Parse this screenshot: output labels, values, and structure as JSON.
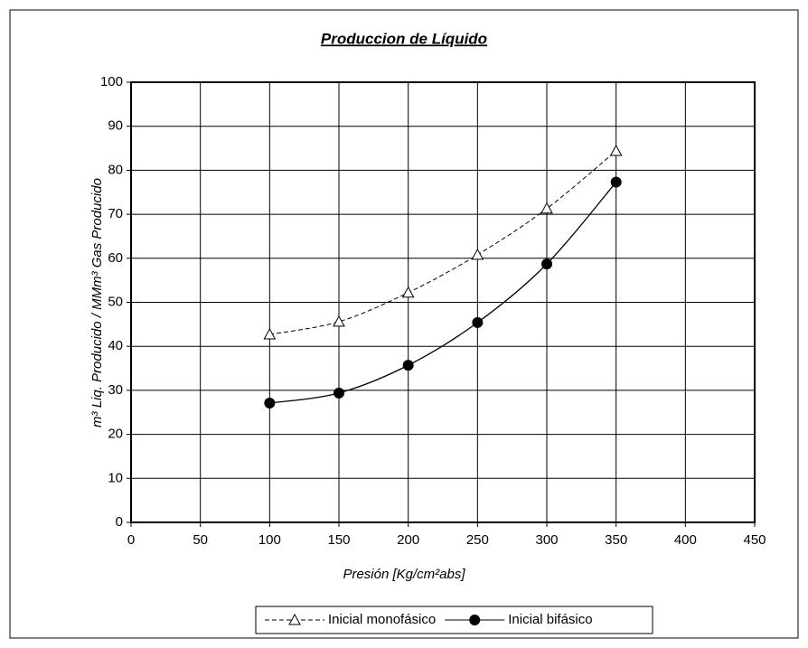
{
  "chart_data": {
    "type": "line",
    "title": "Produccion de Líquido",
    "x_label": "Presión [Kg/cm²abs]",
    "y_label": "m³ Liq. Producido / MMm³ Gas Producido",
    "x": [
      100,
      150,
      200,
      250,
      300,
      350
    ],
    "series": [
      {
        "name": "Inicial monofásico",
        "color": "#000000",
        "dashed": true,
        "marker": "triangle",
        "values": [
          42.7,
          45.6,
          52.2,
          60.8,
          71.3,
          84.4
        ]
      },
      {
        "name": "Inicial bifásico",
        "color": "#000000",
        "dashed": false,
        "marker": "circle",
        "values": [
          27.1,
          29.4,
          35.7,
          45.4,
          58.7,
          77.3
        ]
      }
    ],
    "xlim": [
      0,
      450
    ],
    "xticks": [
      0,
      50,
      100,
      150,
      200,
      250,
      300,
      350,
      400,
      450
    ],
    "ylim": [
      0,
      100
    ],
    "yticks": [
      0,
      10,
      20,
      30,
      40,
      50,
      60,
      70,
      80,
      90,
      100
    ],
    "grid": true,
    "legend": "bottom"
  }
}
